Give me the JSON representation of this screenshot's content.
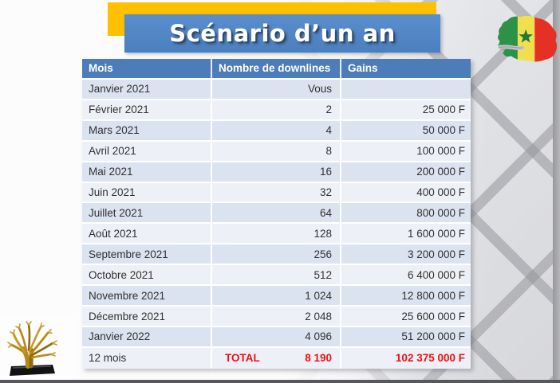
{
  "title": "Scénario d’un an",
  "table": {
    "columns": [
      "Mois",
      "Nombre de downlines",
      "Gains"
    ],
    "rows": [
      {
        "mois": "Janvier 2021",
        "downlines": "Vous",
        "gains": ""
      },
      {
        "mois": "Février 2021",
        "downlines": "2",
        "gains": "25 000 F"
      },
      {
        "mois": "Mars 2021",
        "downlines": "4",
        "gains": "50 000 F"
      },
      {
        "mois": "Avril 2021",
        "downlines": "8",
        "gains": "100 000 F"
      },
      {
        "mois": "Mai 2021",
        "downlines": "16",
        "gains": "200 000 F"
      },
      {
        "mois": "Juin 2021",
        "downlines": "32",
        "gains": "400 000 F"
      },
      {
        "mois": "Juillet 2021",
        "downlines": "64",
        "gains": "800 000 F"
      },
      {
        "mois": "Août 2021",
        "downlines": "128",
        "gains": "1 600 000 F"
      },
      {
        "mois": "Septembre 2021",
        "downlines": "256",
        "gains": "3 200 000 F"
      },
      {
        "mois": "Octobre 2021",
        "downlines": "512",
        "gains": "6 400 000 F"
      },
      {
        "mois": "Novembre 2021",
        "downlines": "1 024",
        "gains": "12 800 000 F"
      },
      {
        "mois": "Décembre 2021",
        "downlines": "2 048",
        "gains": "25 600 000 F"
      },
      {
        "mois": "Janvier 2022",
        "downlines": "4 096",
        "gains": "51 200 000 F"
      }
    ],
    "total": {
      "mois": "12 mois",
      "label": "TOTAL",
      "downlines": "8 190",
      "gains": "102 375 000 F"
    }
  },
  "icons": {
    "senegal_map": "senegal-flag-map",
    "trophy": "golden-baobab-trophy"
  },
  "colors": {
    "header_blue": "#4C7CB9",
    "title_blue": "#4F86C8",
    "accent_yellow": "#FFC000",
    "total_red": "#F20D11",
    "row_dark": "#DCE3F0",
    "row_light": "#EDF1F7"
  }
}
